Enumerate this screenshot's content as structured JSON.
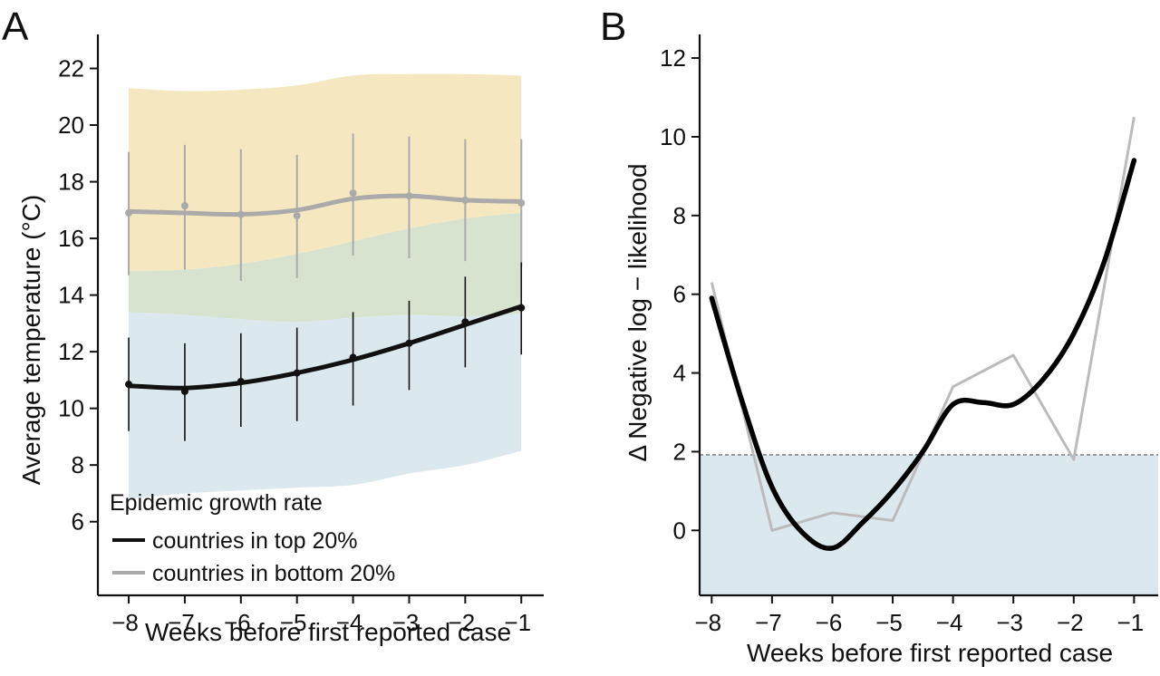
{
  "chart_data": [
    {
      "type": "line",
      "panel_label": "A",
      "xlabel": "Weeks before first reported case",
      "ylabel": "Average temperature (°C)",
      "x": [
        -8,
        -7,
        -6,
        -5,
        -4,
        -3,
        -2,
        -1
      ],
      "x_tick_labels": [
        "−8",
        "−7",
        "−6",
        "−5",
        "−4",
        "−3",
        "−2",
        "−1"
      ],
      "xlim": [
        -8.55,
        -0.6
      ],
      "ylim": [
        3.4,
        23.2
      ],
      "y_ticks": [
        6,
        8,
        10,
        12,
        14,
        16,
        18,
        20,
        22
      ],
      "legend": {
        "title": "Epidemic growth rate",
        "position": "bottom-left",
        "entries": [
          "countries in top 20%",
          "countries in bottom 20%"
        ]
      },
      "series": [
        {
          "name": "countries in top 20%",
          "color": "#111111",
          "band_color": "#dbe9ef",
          "points": [
            10.85,
            10.6,
            10.95,
            11.25,
            11.8,
            12.3,
            13.05,
            13.55
          ],
          "smooth": [
            10.8,
            10.72,
            10.9,
            11.25,
            11.72,
            12.3,
            12.95,
            13.6
          ],
          "err_lower": [
            9.2,
            8.85,
            9.35,
            9.55,
            10.1,
            10.65,
            11.45,
            11.9
          ],
          "err_upper": [
            12.5,
            12.3,
            12.65,
            12.85,
            13.4,
            13.8,
            14.65,
            15.15
          ],
          "band_lower": [
            6.8,
            7.0,
            7.1,
            7.2,
            7.3,
            7.7,
            8.0,
            8.5
          ],
          "band_upper": [
            13.4,
            13.3,
            13.15,
            13.05,
            13.2,
            13.3,
            13.25,
            13.35
          ]
        },
        {
          "name": "countries in bottom 20%",
          "color": "#aaaaaa",
          "band_color": "#f5e8c0",
          "points": [
            16.9,
            17.15,
            16.85,
            16.8,
            17.6,
            17.5,
            17.35,
            17.25
          ],
          "smooth": [
            16.95,
            16.9,
            16.85,
            17.0,
            17.4,
            17.5,
            17.35,
            17.3
          ],
          "err_lower": [
            14.7,
            14.9,
            14.5,
            14.6,
            15.4,
            15.3,
            15.2,
            15.0
          ],
          "err_upper": [
            19.05,
            19.3,
            19.15,
            18.95,
            19.7,
            19.6,
            19.5,
            19.5
          ],
          "band_lower": [
            14.85,
            14.9,
            15.1,
            15.45,
            15.9,
            16.35,
            16.7,
            16.9
          ],
          "band_upper": [
            21.3,
            21.2,
            21.25,
            21.4,
            21.75,
            21.8,
            21.8,
            21.75
          ]
        }
      ],
      "overlap_color": "#d7e3cf"
    },
    {
      "type": "line",
      "panel_label": "B",
      "xlabel": "Weeks before first reported case",
      "ylabel": "Δ Negative log − likelihood",
      "x_ticks": [
        -8,
        -7,
        -6,
        -5,
        -4,
        -3,
        -2,
        -1
      ],
      "x_tick_labels": [
        "−8",
        "−7",
        "−6",
        "−5",
        "−4",
        "−3",
        "−2",
        "−1"
      ],
      "xlim": [
        -8.2,
        -0.6
      ],
      "ylim": [
        -1.65,
        12.6
      ],
      "y_ticks": [
        0,
        2,
        4,
        6,
        8,
        10,
        12
      ],
      "threshold": {
        "y": 1.92,
        "style": "dashed",
        "shade_below": "#dbe9ef"
      },
      "series": [
        {
          "kind": "raw",
          "color": "#bbbbbb",
          "x": [
            -8,
            -7,
            -6,
            -5,
            -4,
            -3,
            -2,
            -1
          ],
          "y": [
            6.3,
            0.0,
            0.45,
            0.25,
            3.65,
            4.45,
            1.8,
            10.5
          ]
        },
        {
          "kind": "smoothed",
          "color": "#000000",
          "x": [
            -8,
            -7.5,
            -7,
            -6.5,
            -6,
            -5.5,
            -5,
            -4.5,
            -4,
            -3.5,
            -3,
            -2.5,
            -2,
            -1.5,
            -1
          ],
          "y": [
            5.9,
            3.3,
            1.1,
            -0.05,
            -0.45,
            0.2,
            1.0,
            2.0,
            3.2,
            3.25,
            3.2,
            3.85,
            5.0,
            6.8,
            9.4
          ]
        }
      ]
    }
  ]
}
